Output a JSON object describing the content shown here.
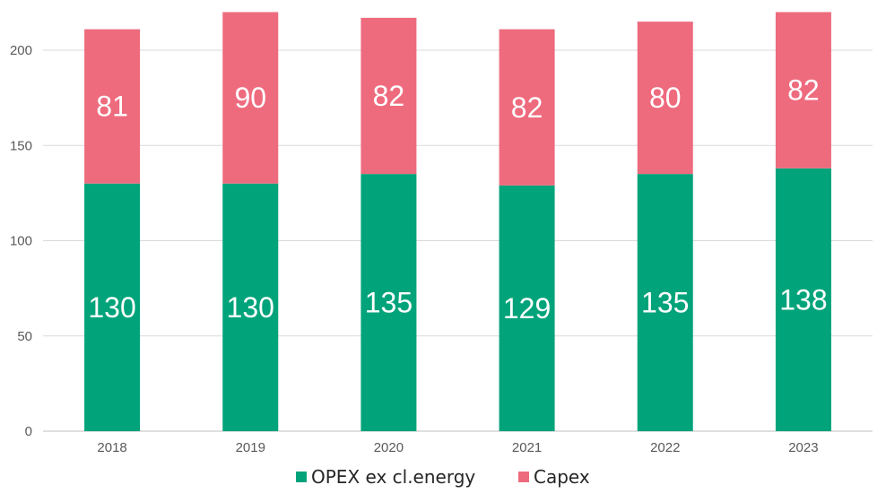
{
  "chart_data": {
    "type": "bar",
    "stacked": true,
    "title": "",
    "xlabel": "",
    "ylabel": "",
    "categories": [
      "2018",
      "2019",
      "2020",
      "2021",
      "2022",
      "2023"
    ],
    "series": [
      {
        "name": "OPEX ex cl.energy",
        "color": "#00a37a",
        "values": [
          130,
          130,
          135,
          129,
          135,
          138
        ]
      },
      {
        "name": "Capex",
        "color": "#ee6b7e",
        "values": [
          81,
          90,
          82,
          82,
          80,
          82
        ]
      }
    ],
    "ylim": [
      0,
      220
    ],
    "yticks": [
      "0",
      "50",
      "100",
      "150",
      "200"
    ],
    "grid": true,
    "legend_position": "bottom",
    "gridline_color": "#d9d9d9",
    "axis_color": "#bfbfbf"
  }
}
